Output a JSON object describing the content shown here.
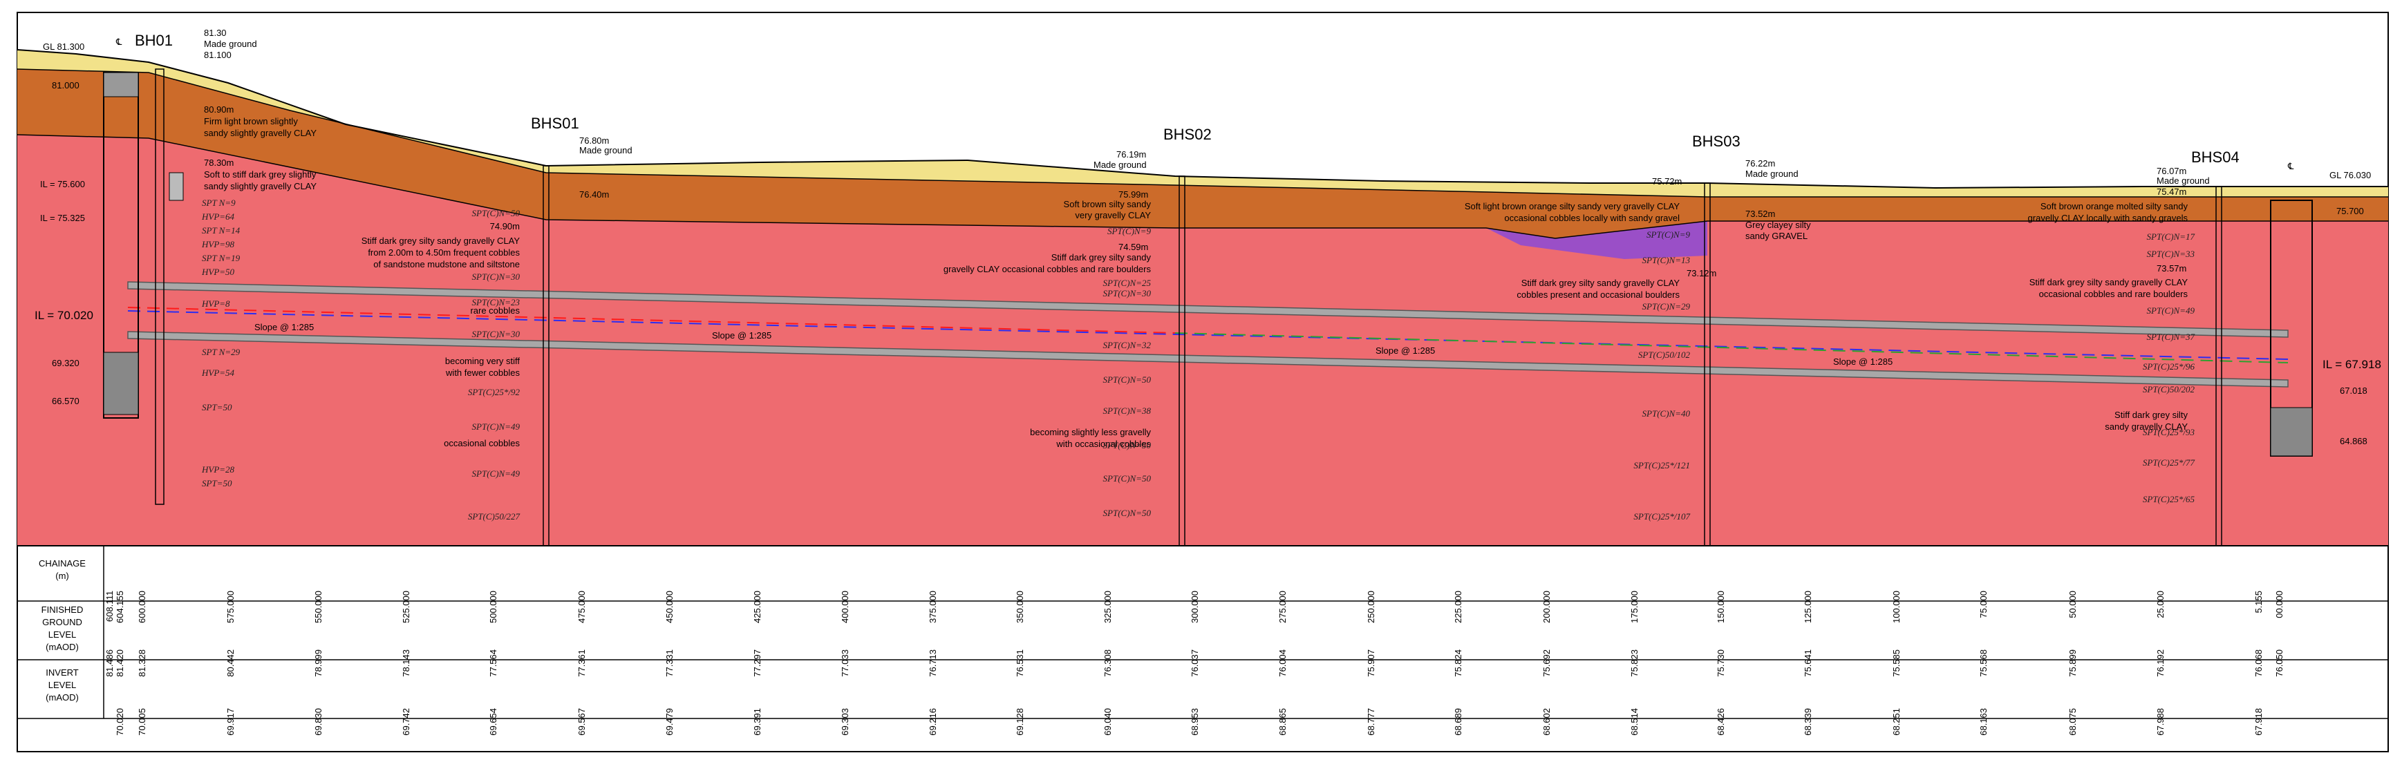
{
  "boreholes": [
    {
      "id": "BH01",
      "labels": [
        "81.30",
        "Made ground",
        "81.100"
      ]
    },
    {
      "id": "BHS01",
      "labels": [
        "76.80m",
        "Made ground",
        "76.40m"
      ]
    },
    {
      "id": "BHS02",
      "labels": [
        "76.19m",
        "Made ground",
        "75.99m",
        "74.59m"
      ]
    },
    {
      "id": "BHS03",
      "labels": [
        "76.22m",
        "Made ground",
        "75.72m",
        "73.52m",
        "73.12m"
      ]
    },
    {
      "id": "BHS04",
      "labels": [
        "76.07m",
        "Made ground",
        "75.47m",
        "73.57m"
      ]
    }
  ],
  "chamber_left": {
    "cl": "℄",
    "gl": "GL 81.300",
    "levels": [
      "81.000",
      "IL = 75.600",
      "IL = 75.325",
      "IL = 70.020",
      "69.320",
      "66.570"
    ]
  },
  "chamber_right": {
    "cl": "℄",
    "gl": "GL 76.030",
    "levels": [
      "75.700",
      "IL = 67.918",
      "67.018",
      "64.868"
    ]
  },
  "slope_labels": [
    "Slope @ 1:285",
    "Slope @ 1:285",
    "Slope @ 1:285",
    "Slope @ 1:285"
  ],
  "strata_text": {
    "bh01_a": [
      "80.90m",
      "Firm light brown slightly",
      "sandy slightly gravelly CLAY"
    ],
    "bh01_b": [
      "78.30m",
      "Soft to stiff dark grey slightly",
      "sandy slightly gravelly CLAY"
    ],
    "bhs01_a": [
      "74.90m",
      "Stiff dark grey silty sandy gravelly CLAY",
      "from 2.00m to 4.50m frequent cobbles",
      "of sandstone mudstone and siltstone"
    ],
    "bhs01_b": [
      "rare cobbles"
    ],
    "bhs01_c": [
      "becoming very stiff",
      "with fewer cobbles"
    ],
    "bhs01_d": [
      "occasional cobbles"
    ],
    "bhs02_a": [
      "Soft brown silty sandy",
      "very gravelly CLAY"
    ],
    "bhs02_b": [
      "Stiff dark grey silty sandy",
      "gravelly CLAY occasional cobbles and rare boulders"
    ],
    "bhs02_c": [
      "becoming slightly less gravelly",
      "with occasional cobbles"
    ],
    "bhs03_a": [
      "Soft light brown orange silty sandy very gravelly CLAY",
      "occasional cobbles locally with sandy gravel"
    ],
    "bhs03_b": [
      "Grey clayey silty",
      "sandy GRAVEL"
    ],
    "bhs03_c": [
      "Stiff dark grey silty sandy gravelly CLAY",
      "cobbles present and occasional boulders"
    ],
    "bhs04_a": [
      "Soft brown orange molted silty sandy",
      "gravelly CLAY locally with sandy gravels"
    ],
    "bhs04_b": [
      "Stiff dark grey silty sandy gravelly CLAY",
      "occasional cobbles and rare boulders"
    ],
    "bhs04_c": [
      "Stiff dark grey silty",
      "sandy gravelly CLAY"
    ]
  },
  "spt_bh01": [
    "SPT N=9",
    "HVP=64",
    "SPT N=14",
    "HVP=98",
    "SPT N=19",
    "HVP=50",
    "HVP=8",
    "SPT N=29",
    "HVP=54",
    "SPT=50",
    "HVP=28",
    "SPT=50"
  ],
  "spt_bhs01": [
    "SPT(C)N=50",
    "SPT(C)N=30",
    "SPT(C)N=23",
    "SPT(C)N=30",
    "SPT(C)25*/92",
    "SPT(C)N=49",
    "SPT(C)N=49",
    "SPT(C)50/227"
  ],
  "spt_bhs02": [
    "SPT(C)N=9",
    "SPT(C)N=25",
    "SPT(C)N=30",
    "SPT(C)N=32",
    "SPT(C)N=50",
    "SPT(C)N=38",
    "SPT(C)N=50",
    "SPT(C)N=50",
    "SPT(C)N=50"
  ],
  "spt_bhs03": [
    "SPT(C)N=9",
    "SPT(C)N=13",
    "SPT(C)N=29",
    "SPT(C)50/102",
    "SPT(C)N=40",
    "SPT(C)25*/121",
    "SPT(C)25*/107"
  ],
  "spt_bhs04": [
    "SPT(C)N=17",
    "SPT(C)N=33",
    "SPT(C)N=49",
    "SPT(C)N=37",
    "SPT(C)25*/96",
    "SPT(C)50/202",
    "SPT(C)25*/93",
    "SPT(C)25*/77",
    "SPT(C)25*/65"
  ],
  "table": {
    "row_labels": [
      [
        "CHAINAGE",
        "(m)"
      ],
      [
        "FINISHED",
        "GROUND",
        "LEVEL",
        "(mAOD)"
      ],
      [
        "INVERT",
        "LEVEL",
        "(mAOD)"
      ]
    ],
    "chainage": [
      "608.111",
      "604.155",
      "600.000",
      "575.000",
      "550.000",
      "525.000",
      "500.000",
      "475.000",
      "450.000",
      "425.000",
      "400.000",
      "375.000",
      "350.000",
      "325.000",
      "300.000",
      "275.000",
      "250.000",
      "225.000",
      "200.000",
      "175.000",
      "150.000",
      "125.000",
      "100.000",
      "75.000",
      "50.000",
      "25.000",
      "5.155",
      "00.000"
    ],
    "ground_level": [
      "81.486",
      "81.420",
      "81.328",
      "80.442",
      "78.999",
      "78.143",
      "77.564",
      "77.361",
      "77.331",
      "77.297",
      "77.033",
      "76.713",
      "76.531",
      "76.308",
      "76.037",
      "76.004",
      "75.907",
      "75.824",
      "75.692",
      "75.823",
      "75.730",
      "75.641",
      "75.585",
      "75.568",
      "75.899",
      "76.192",
      "76.068",
      "76.050"
    ],
    "invert_level": [
      "",
      "70.020",
      "70.005",
      "69.917",
      "69.830",
      "69.742",
      "69.654",
      "69.567",
      "69.479",
      "69.391",
      "69.303",
      "69.216",
      "69.128",
      "69.040",
      "68.953",
      "68.865",
      "68.777",
      "68.689",
      "68.602",
      "68.514",
      "68.426",
      "68.339",
      "68.251",
      "68.163",
      "68.075",
      "67.988",
      "67.918",
      ""
    ]
  }
}
